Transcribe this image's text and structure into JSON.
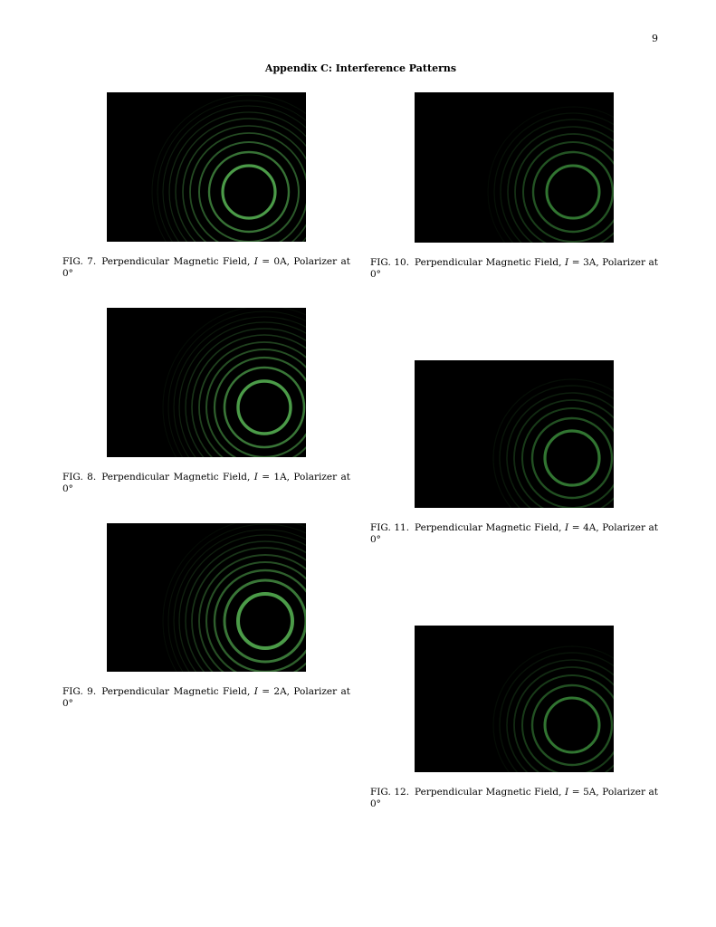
{
  "page": {
    "number": "9",
    "section_title": "Appendix C: Interference Patterns"
  },
  "figures": [
    {
      "label": "FIG. 7.",
      "text_before": "Perpendicular Magnetic Field,",
      "variable": "I",
      "text_after": "= 0A, Polarizer at 0°",
      "image": "interference-ring-pattern-photo",
      "ring_color": "#5fb35a"
    },
    {
      "label": "FIG. 8.",
      "text_before": "Perpendicular Magnetic Field,",
      "variable": "I",
      "text_after": "= 1A, Polarizer at 0°",
      "image": "interference-ring-pattern-photo",
      "ring_color": "#5fb35a"
    },
    {
      "label": "FIG. 9.",
      "text_before": "Perpendicular Magnetic Field,",
      "variable": "I",
      "text_after": "= 2A, Polarizer at 0°",
      "image": "interference-ring-pattern-photo",
      "ring_color": "#5fb35a"
    },
    {
      "label": "FIG. 10.",
      "text_before": "Perpendicular Magnetic Field,",
      "variable": "I",
      "text_after": "= 3A, Polarizer at 0°",
      "image": "interference-ring-pattern-photo",
      "ring_color": "#3f8a3f"
    },
    {
      "label": "FIG. 11.",
      "text_before": "Perpendicular Magnetic Field,",
      "variable": "I",
      "text_after": "= 4A, Polarizer at 0°",
      "image": "interference-ring-pattern-photo",
      "ring_color": "#3f8a3f"
    },
    {
      "label": "FIG. 12.",
      "text_before": "Perpendicular Magnetic Field,",
      "variable": "I",
      "text_after": "= 5A, Polarizer at 0°",
      "image": "interference-ring-pattern-photo",
      "ring_color": "#3f8a3f"
    }
  ]
}
